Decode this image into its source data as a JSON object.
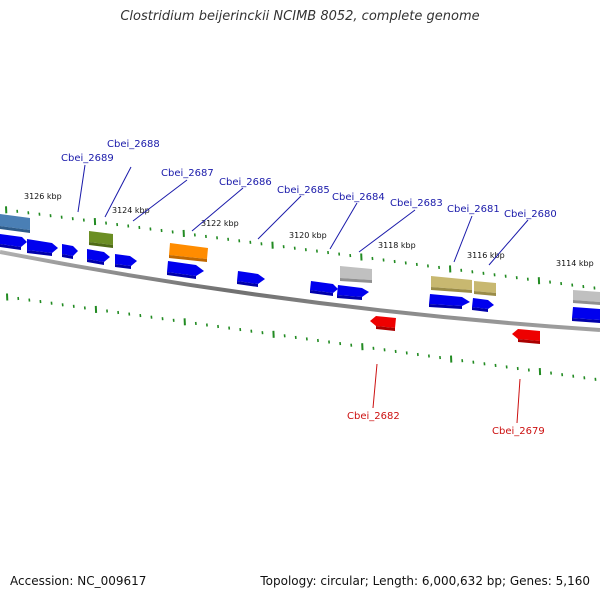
{
  "title": "Clostridium beijerinckii NCIMB 8052, complete genome",
  "footer": {
    "accession": "Accession: NC_009617",
    "topology": "Topology: circular; Length: 6,000,632 bp; Genes: 5,160"
  },
  "colors": {
    "forward": "#0000ee",
    "reverse": "#ee0000",
    "tick": "#228b22",
    "backbone": "#808080",
    "label_forward": "#1a1aaa",
    "label_reverse": "#cc1111"
  },
  "kbp_labels": [
    "3126 kbp",
    "3124 kbp",
    "3122 kbp",
    "3120 kbp",
    "3118 kbp",
    "3116 kbp",
    "3114 kbp"
  ],
  "gene_labels_forward": [
    "Cbei_2689",
    "Cbei_2688",
    "Cbei_2687",
    "Cbei_2686",
    "Cbei_2685",
    "Cbei_2684",
    "Cbei_2683",
    "Cbei_2681",
    "Cbei_2680"
  ],
  "gene_labels_reverse": [
    "Cbei_2682",
    "Cbei_2679"
  ],
  "feature_colors": {
    "steelblue": "#4a7fb5",
    "olive": "#6b8e23",
    "orange": "#ff8c00",
    "silver": "#b8b8b8",
    "khaki": "#c8b870"
  }
}
